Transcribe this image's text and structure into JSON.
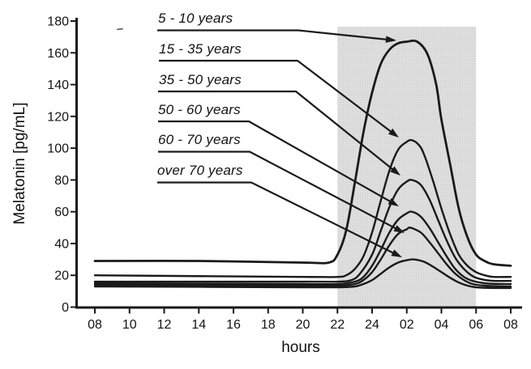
{
  "chart_data": {
    "type": "line",
    "title": "",
    "xlabel": "hours",
    "ylabel": "Melatonin [pg/mL]",
    "x_tick_labels": [
      "08",
      "10",
      "12",
      "14",
      "16",
      "18",
      "20",
      "22",
      "24",
      "02",
      "04",
      "06",
      "08"
    ],
    "y_tick_values": [
      0,
      20,
      40,
      60,
      80,
      100,
      120,
      140,
      160,
      180
    ],
    "ylim": [
      0,
      180
    ],
    "x_encoding": "points x = hours elapsed after 08:00 (0..24)",
    "grid": "off",
    "legend_position": "inline labels with arrows pointing to each curve peak",
    "shaded_region": {
      "start_label": "22",
      "end_label": "06",
      "fill": "#dcdcdc"
    },
    "line_color": "#1a1a1a",
    "series": [
      {
        "label": "5 - 10 years",
        "daytime_baseline": 29,
        "peak_value": 167,
        "peak_time": "02",
        "points": [
          [
            0,
            29
          ],
          [
            6,
            29
          ],
          [
            12,
            28
          ],
          [
            13.5,
            28
          ],
          [
            14,
            33
          ],
          [
            14.5,
            48
          ],
          [
            15,
            78
          ],
          [
            15.5,
            110
          ],
          [
            16,
            135
          ],
          [
            16.5,
            153
          ],
          [
            17,
            162
          ],
          [
            17.5,
            166
          ],
          [
            18,
            167
          ],
          [
            18.6,
            167
          ],
          [
            19.2,
            159
          ],
          [
            19.7,
            140
          ],
          [
            20,
            118
          ],
          [
            20.5,
            90
          ],
          [
            21,
            62
          ],
          [
            21.5,
            44
          ],
          [
            22,
            33
          ],
          [
            22.5,
            29
          ],
          [
            23,
            27
          ],
          [
            24,
            26
          ]
        ]
      },
      {
        "label": "15 - 35 years",
        "daytime_baseline": 20,
        "peak_value": 105,
        "peak_time": "02",
        "points": [
          [
            0,
            20
          ],
          [
            12,
            19
          ],
          [
            14,
            19
          ],
          [
            14.5,
            20
          ],
          [
            15,
            24
          ],
          [
            15.5,
            32
          ],
          [
            16,
            47
          ],
          [
            16.5,
            67
          ],
          [
            17,
            86
          ],
          [
            17.5,
            99
          ],
          [
            18,
            104
          ],
          [
            18.3,
            105
          ],
          [
            18.7,
            102
          ],
          [
            19,
            96
          ],
          [
            19.5,
            80
          ],
          [
            20,
            62
          ],
          [
            20.5,
            46
          ],
          [
            21,
            33
          ],
          [
            21.5,
            26
          ],
          [
            22,
            22
          ],
          [
            22.5,
            20
          ],
          [
            23,
            19
          ],
          [
            24,
            19
          ]
        ]
      },
      {
        "label": "35 - 50 years",
        "daytime_baseline": 16,
        "peak_value": 80,
        "peak_time": "02",
        "points": [
          [
            0,
            16
          ],
          [
            12,
            16
          ],
          [
            14,
            16
          ],
          [
            14.8,
            17
          ],
          [
            15.3,
            21
          ],
          [
            16,
            33
          ],
          [
            16.5,
            48
          ],
          [
            17,
            63
          ],
          [
            17.5,
            74
          ],
          [
            18,
            79
          ],
          [
            18.3,
            80
          ],
          [
            18.8,
            77
          ],
          [
            19.3,
            68
          ],
          [
            19.8,
            55
          ],
          [
            20.3,
            42
          ],
          [
            20.8,
            31
          ],
          [
            21.3,
            24
          ],
          [
            21.8,
            19.5
          ],
          [
            22.3,
            17.5
          ],
          [
            23,
            16.5
          ],
          [
            24,
            16.5
          ]
        ]
      },
      {
        "label": "50 - 60 years",
        "daytime_baseline": 15,
        "peak_value": 60,
        "peak_time": "02",
        "points": [
          [
            0,
            15
          ],
          [
            12,
            14.5
          ],
          [
            14,
            14.5
          ],
          [
            15,
            16
          ],
          [
            15.5,
            19
          ],
          [
            16,
            26
          ],
          [
            16.5,
            36
          ],
          [
            17,
            47
          ],
          [
            17.5,
            55
          ],
          [
            18,
            59
          ],
          [
            18.3,
            60
          ],
          [
            18.8,
            57
          ],
          [
            19.3,
            50
          ],
          [
            19.8,
            41
          ],
          [
            20.3,
            32
          ],
          [
            20.8,
            24
          ],
          [
            21.3,
            19
          ],
          [
            21.8,
            16.5
          ],
          [
            22.5,
            15
          ],
          [
            23.5,
            14.5
          ],
          [
            24,
            14.5
          ]
        ]
      },
      {
        "label": "60 - 70 years",
        "daytime_baseline": 14,
        "peak_value": 50,
        "peak_time": "02",
        "points": [
          [
            0,
            14
          ],
          [
            12,
            13.5
          ],
          [
            14,
            13.5
          ],
          [
            15,
            14.5
          ],
          [
            15.5,
            17
          ],
          [
            16,
            22
          ],
          [
            16.5,
            30
          ],
          [
            17,
            39
          ],
          [
            17.5,
            46
          ],
          [
            18,
            49
          ],
          [
            18.2,
            50
          ],
          [
            18.8,
            47
          ],
          [
            19.3,
            41
          ],
          [
            19.8,
            34
          ],
          [
            20.3,
            27
          ],
          [
            20.8,
            21
          ],
          [
            21.3,
            17
          ],
          [
            21.8,
            14.5
          ],
          [
            22.5,
            13.5
          ],
          [
            23.5,
            13
          ],
          [
            24,
            13
          ]
        ]
      },
      {
        "label": "over 70 years",
        "daytime_baseline": 13,
        "peak_value": 30,
        "peak_time": "02",
        "points": [
          [
            0,
            13
          ],
          [
            12,
            12.5
          ],
          [
            14,
            12.5
          ],
          [
            15,
            13
          ],
          [
            15.5,
            14.5
          ],
          [
            16,
            17
          ],
          [
            16.5,
            21
          ],
          [
            17,
            25
          ],
          [
            17.5,
            28
          ],
          [
            18,
            29.5
          ],
          [
            18.4,
            30
          ],
          [
            19,
            28.5
          ],
          [
            19.5,
            25.5
          ],
          [
            20,
            22
          ],
          [
            20.5,
            18.5
          ],
          [
            21,
            15.5
          ],
          [
            21.5,
            13.5
          ],
          [
            22,
            12.5
          ],
          [
            23,
            12
          ],
          [
            24,
            12
          ]
        ]
      }
    ]
  }
}
